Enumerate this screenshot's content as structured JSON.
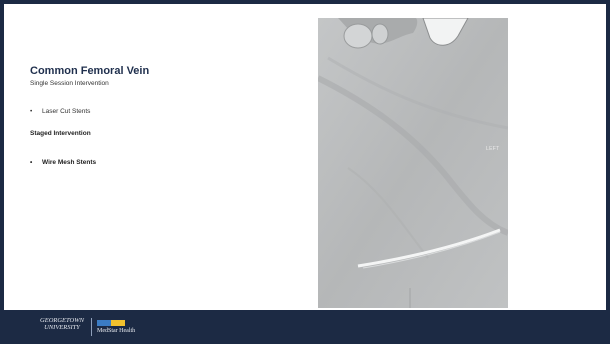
{
  "slide": {
    "title": "Common Femoral Vein",
    "subtitle": "Single Session Intervention",
    "bullet_1": "Laser Cut Stents",
    "section_heading": "Staged Intervention",
    "bullet_2": "Wire Mesh Stents",
    "bullet_marker": "•"
  },
  "image": {
    "side_label": "LEFT"
  },
  "footer": {
    "university_line_1": "GEORGETOWN",
    "university_line_2": "UNIVERSITY",
    "partner_name": "MedStar Health"
  },
  "colors": {
    "footer_background": "#1c2a44",
    "title": "#1f2f4d",
    "medstar_blue": "#3b7cc4",
    "medstar_yellow": "#f2c12e"
  }
}
